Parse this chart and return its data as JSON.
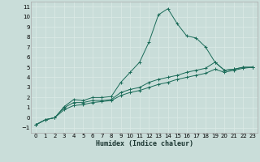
{
  "xlabel": "Humidex (Indice chaleur)",
  "background_color": "#c9ddd9",
  "grid_color": "#ddeae6",
  "line_color": "#1a6b58",
  "xlim": [
    -0.5,
    23.5
  ],
  "ylim": [
    -1.5,
    11.5
  ],
  "xticks": [
    0,
    1,
    2,
    3,
    4,
    5,
    6,
    7,
    8,
    9,
    10,
    11,
    12,
    13,
    14,
    15,
    16,
    17,
    18,
    19,
    20,
    21,
    22,
    23
  ],
  "yticks": [
    -1,
    0,
    1,
    2,
    3,
    4,
    5,
    6,
    7,
    8,
    9,
    10,
    11
  ],
  "curve1_x": [
    0,
    1,
    2,
    3,
    4,
    5,
    6,
    7,
    8,
    9,
    10,
    11,
    12,
    13,
    14,
    15,
    16,
    17,
    18,
    19,
    20,
    21,
    22,
    23
  ],
  "curve1_y": [
    -0.7,
    -0.2,
    0.0,
    1.1,
    1.8,
    1.7,
    2.0,
    2.0,
    2.1,
    3.5,
    4.5,
    5.5,
    7.5,
    10.2,
    10.8,
    9.3,
    8.1,
    7.9,
    7.0,
    5.5,
    4.7,
    4.8,
    5.0,
    5.0
  ],
  "curve2_x": [
    0,
    1,
    2,
    3,
    4,
    5,
    6,
    7,
    8,
    9,
    10,
    11,
    12,
    13,
    14,
    15,
    16,
    17,
    18,
    19,
    20,
    21,
    22,
    23
  ],
  "curve2_y": [
    -0.7,
    -0.2,
    0.0,
    1.0,
    1.5,
    1.5,
    1.7,
    1.7,
    1.8,
    2.5,
    2.8,
    3.0,
    3.5,
    3.8,
    4.0,
    4.2,
    4.5,
    4.7,
    4.9,
    5.5,
    4.7,
    4.8,
    5.0,
    5.0
  ],
  "curve3_x": [
    0,
    1,
    2,
    3,
    4,
    5,
    6,
    7,
    8,
    9,
    10,
    11,
    12,
    13,
    14,
    15,
    16,
    17,
    18,
    19,
    20,
    21,
    22,
    23
  ],
  "curve3_y": [
    -0.7,
    -0.2,
    0.0,
    0.8,
    1.2,
    1.3,
    1.5,
    1.6,
    1.7,
    2.2,
    2.5,
    2.7,
    3.0,
    3.3,
    3.5,
    3.8,
    4.0,
    4.2,
    4.4,
    4.8,
    4.5,
    4.7,
    4.9,
    5.0
  ],
  "tick_fontsize": 5,
  "xlabel_fontsize": 6,
  "linewidth": 0.7,
  "markersize": 2.5,
  "markeredgewidth": 0.7
}
